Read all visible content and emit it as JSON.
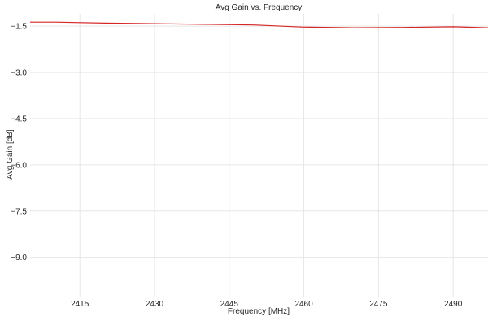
{
  "chart_data": {
    "type": "line",
    "title": "Avg Gain vs. Frequency",
    "xlabel": "Frequency [MHz]",
    "ylabel": "Avg Gain [dB]",
    "xlim": [
      2405,
      2497
    ],
    "ylim": [
      -10.3,
      -1.1
    ],
    "xticks": [
      2415,
      2430,
      2445,
      2460,
      2475,
      2490
    ],
    "xtick_labels": [
      "2415",
      "2430",
      "2445",
      "2460",
      "2475",
      "2490"
    ],
    "yticks": [
      -1.5,
      -3.0,
      -4.5,
      -6.0,
      -7.5,
      -9.0
    ],
    "ytick_labels": [
      "−1.5",
      "−3.0",
      "−4.5",
      "−6.0",
      "−7.5",
      "−9.0"
    ],
    "grid": true,
    "series": [
      {
        "color": "#d62728",
        "x": [
          2405,
          2410,
          2420,
          2430,
          2440,
          2450,
          2460,
          2470,
          2480,
          2490,
          2497
        ],
        "y": [
          -1.37,
          -1.37,
          -1.4,
          -1.42,
          -1.44,
          -1.46,
          -1.53,
          -1.55,
          -1.54,
          -1.52,
          -1.55
        ]
      }
    ]
  }
}
